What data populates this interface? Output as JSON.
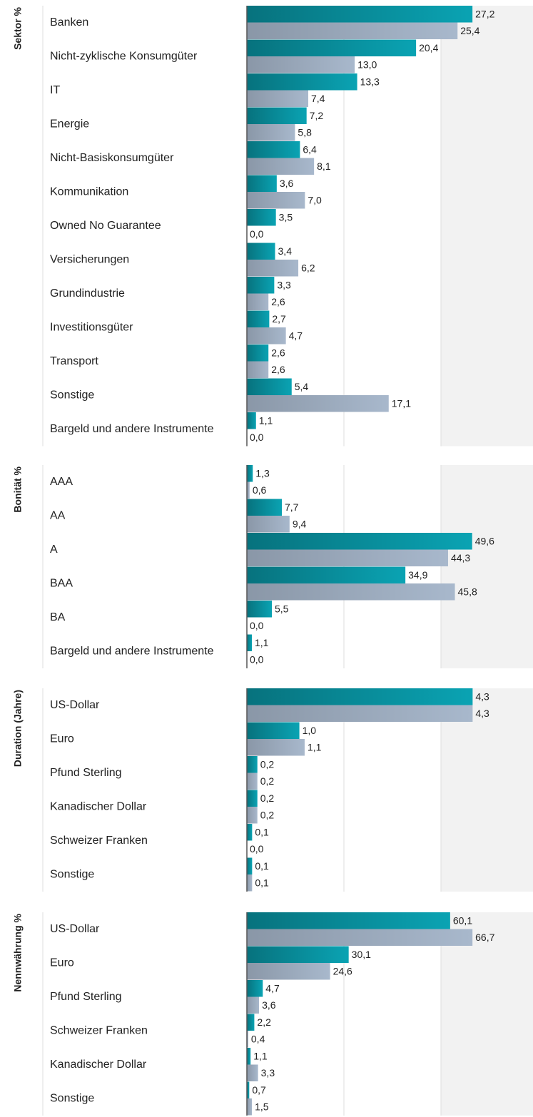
{
  "chart_data": [
    {
      "type": "bar",
      "orientation": "horizontal",
      "title": "Sektor %",
      "categories": [
        "Banken",
        "Nicht-zyklische Konsumgüter",
        "IT",
        "Energie",
        "Nicht-Basiskonsumgüter",
        "Kommunikation",
        "Owned No Guarantee",
        "Versicherungen",
        "Grundindustrie",
        "Investitionsgüter",
        "Transport",
        "Sonstige",
        "Bargeld und andere Instrumente"
      ],
      "series": [
        {
          "color": "#0aa3b3",
          "values": [
            27.2,
            20.4,
            13.3,
            7.2,
            6.4,
            3.6,
            3.5,
            3.4,
            3.3,
            2.7,
            2.6,
            5.4,
            1.1
          ],
          "value_labels": [
            "27,2",
            "20,4",
            "13,3",
            "7,2",
            "6,4",
            "3,6",
            "3,5",
            "3,4",
            "3,3",
            "2,7",
            "2,6",
            "5,4",
            "1,1"
          ]
        },
        {
          "color": "#a8b8cc",
          "values": [
            25.4,
            13.0,
            7.4,
            5.8,
            8.1,
            7.0,
            0.0,
            6.2,
            2.6,
            4.7,
            2.6,
            17.1,
            0.0
          ],
          "value_labels": [
            "25,4",
            "13,0",
            "7,4",
            "5,8",
            "8,1",
            "7,0",
            "0,0",
            "6,2",
            "2,6",
            "4,7",
            "2,6",
            "17,1",
            "0,0"
          ]
        }
      ],
      "xlim": [
        0,
        34.5
      ],
      "grid": true
    },
    {
      "type": "bar",
      "orientation": "horizontal",
      "title": "Bonität %",
      "categories": [
        "AAA",
        "AA",
        "A",
        "BAA",
        "BA",
        "Bargeld und andere Instrumente"
      ],
      "series": [
        {
          "color": "#0aa3b3",
          "values": [
            1.3,
            7.7,
            49.6,
            34.9,
            5.5,
            1.1
          ],
          "value_labels": [
            "1,3",
            "7,7",
            "49,6",
            "34,9",
            "5,5",
            "1,1"
          ]
        },
        {
          "color": "#a8b8cc",
          "values": [
            0.6,
            9.4,
            44.3,
            45.8,
            0.0,
            0.0
          ],
          "value_labels": [
            "0,6",
            "9,4",
            "44,3",
            "45,8",
            "0,0",
            "0,0"
          ]
        }
      ],
      "xlim": [
        0,
        63
      ],
      "grid": true
    },
    {
      "type": "bar",
      "orientation": "horizontal",
      "title": "Duration (Jahre)",
      "categories": [
        "US-Dollar",
        "Euro",
        "Pfund Sterling",
        "Kanadischer Dollar",
        "Schweizer Franken",
        "Sonstige"
      ],
      "series": [
        {
          "color": "#0aa3b3",
          "values": [
            4.3,
            1.0,
            0.2,
            0.2,
            0.1,
            0.1
          ],
          "value_labels": [
            "4,3",
            "1,0",
            "0,2",
            "0,2",
            "0,1",
            "0,1"
          ]
        },
        {
          "color": "#a8b8cc",
          "values": [
            4.3,
            1.1,
            0.2,
            0.2,
            0.0,
            0.1
          ],
          "value_labels": [
            "4,3",
            "1,1",
            "0,2",
            "0,2",
            "0,0",
            "0,1"
          ]
        }
      ],
      "xlim": [
        0,
        5.45
      ],
      "grid": true
    },
    {
      "type": "bar",
      "orientation": "horizontal",
      "title": "Nennwährung %",
      "categories": [
        "US-Dollar",
        "Euro",
        "Pfund Sterling",
        "Schweizer Franken",
        "Kanadischer Dollar",
        "Sonstige"
      ],
      "series": [
        {
          "color": "#0aa3b3",
          "values": [
            60.1,
            30.1,
            4.7,
            2.2,
            1.1,
            0.7
          ],
          "value_labels": [
            "60,1",
            "30,1",
            "4,7",
            "2,2",
            "1,1",
            "0,7"
          ]
        },
        {
          "color": "#a8b8cc",
          "values": [
            66.7,
            24.6,
            3.6,
            0.4,
            3.3,
            1.5
          ],
          "value_labels": [
            "66,7",
            "24,6",
            "3,6",
            "0,4",
            "3,3",
            "1,5"
          ]
        }
      ],
      "xlim": [
        0,
        84.6
      ],
      "grid": true
    }
  ]
}
